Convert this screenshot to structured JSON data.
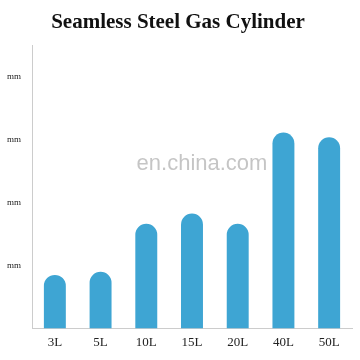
{
  "chart_data": {
    "type": "bar",
    "title": "Seamless Steel Gas Cylinder",
    "categories": [
      "3L",
      "5L",
      "10L",
      "15L",
      "20L",
      "40L",
      "50L"
    ],
    "values": [
      340,
      360,
      665,
      730,
      665,
      1245,
      1215
    ],
    "color": "#3ea5d3",
    "ylim": [
      0,
      1800
    ],
    "yticks": [
      {
        "value": 400,
        "label": "mm"
      },
      {
        "value": 800,
        "label": "mm"
      },
      {
        "value": 1200,
        "label": "mm"
      },
      {
        "value": 1600,
        "label": "mm"
      }
    ],
    "grid": false,
    "annotations": [
      "en.china.com"
    ]
  }
}
